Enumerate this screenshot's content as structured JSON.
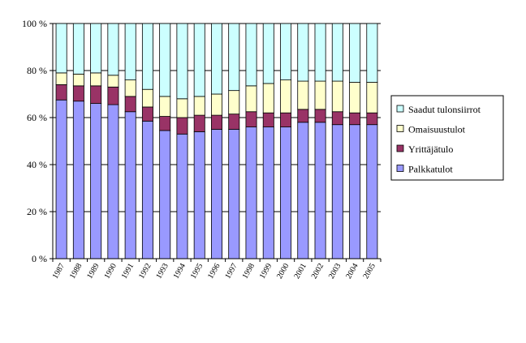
{
  "chart_data": {
    "type": "bar",
    "stacked": true,
    "percent": true,
    "title": "",
    "xlabel": "",
    "ylabel": "",
    "ylim": [
      0,
      100
    ],
    "yticks": [
      "0 %",
      "20 %",
      "40 %",
      "60 %",
      "80 %",
      "100 %"
    ],
    "grid": true,
    "legend_position": "right",
    "categories": [
      "1987",
      "1988",
      "1989",
      "1990",
      "1991",
      "1992",
      "1993",
      "1994",
      "1995",
      "1996",
      "1997",
      "1998",
      "1999",
      "2000",
      "2001",
      "2002",
      "2003",
      "2004",
      "2005"
    ],
    "series": [
      {
        "name": "Palkkatulot",
        "color": "#9999ff",
        "values": [
          67.5,
          67,
          66,
          65.5,
          62.5,
          58.5,
          54.5,
          53,
          54,
          55,
          55,
          56,
          56,
          56,
          58,
          58,
          57,
          57,
          57
        ]
      },
      {
        "name": "Yrittäjätulo",
        "color": "#993366",
        "values": [
          6.5,
          6.5,
          7.5,
          7.5,
          6.5,
          6,
          6,
          7,
          7,
          6,
          6.5,
          6.5,
          6,
          6,
          5.5,
          5.5,
          5.5,
          5,
          5
        ]
      },
      {
        "name": "Omaisuustulot",
        "color": "#ffffcc",
        "values": [
          5,
          5,
          5.5,
          5,
          7,
          7.5,
          8.5,
          8,
          8,
          9,
          10,
          11,
          12.5,
          14,
          12,
          12,
          13,
          13,
          13
        ]
      },
      {
        "name": "Saadut tulonsiirrot",
        "color": "#ccffff",
        "values": [
          21,
          21.5,
          21,
          22,
          24,
          28,
          31,
          32,
          31,
          30,
          28.5,
          26.5,
          25.5,
          24,
          24.5,
          24.5,
          24.5,
          25,
          25
        ]
      }
    ],
    "legend_order": [
      "Saadut tulonsiirrot",
      "Omaisuustulot",
      "Yrittäjätulo",
      "Palkkatulot"
    ]
  }
}
